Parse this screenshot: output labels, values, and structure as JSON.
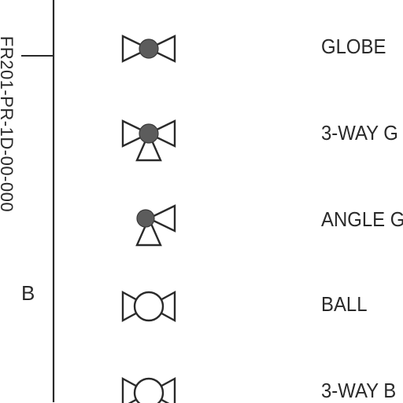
{
  "margin": {
    "vertical_text": "FR201-PR-1D-00-000",
    "zone_letter": "B"
  },
  "legend": {
    "items": [
      {
        "symbol": "globe-valve-icon",
        "label": "GLOBE"
      },
      {
        "symbol": "three-way-globe-valve-icon",
        "label": "3-WAY G"
      },
      {
        "symbol": "angle-globe-valve-icon",
        "label": "ANGLE G"
      },
      {
        "symbol": "ball-valve-icon",
        "label": "BALL"
      },
      {
        "symbol": "three-way-ball-valve-icon",
        "label": "3-WAY B"
      }
    ]
  },
  "colors": {
    "ink": "#2a2a2a",
    "fill_dark": "#5c5c5c",
    "paper": "#ffffff"
  }
}
